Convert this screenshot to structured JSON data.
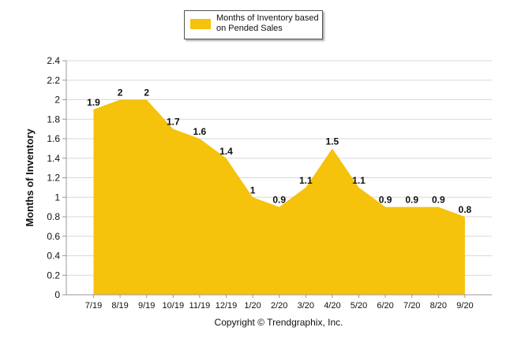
{
  "chart_data": {
    "type": "area",
    "categories": [
      "7/19",
      "8/19",
      "9/19",
      "10/19",
      "11/19",
      "12/19",
      "1/20",
      "2/20",
      "3/20",
      "4/20",
      "5/20",
      "6/20",
      "7/20",
      "8/20",
      "9/20"
    ],
    "series": [
      {
        "name": "Months of Inventory based on Pended Sales",
        "values": [
          1.9,
          2,
          2,
          1.7,
          1.6,
          1.4,
          1,
          0.9,
          1.1,
          1.5,
          1.1,
          0.9,
          0.9,
          0.9,
          0.8
        ],
        "labels": [
          "1.9",
          "2",
          "2",
          "1.7",
          "1.6",
          "1.4",
          "1",
          "0.9",
          "1.1",
          "1.5",
          "1.1",
          "0.9",
          "0.9",
          "0.9",
          "0.8"
        ],
        "color": "#f5c20c"
      }
    ],
    "ylabel": "Months of Inventory",
    "xlabel": "",
    "ylim": [
      0,
      2.4
    ],
    "yticks": [
      "0",
      "0.2",
      "0.4",
      "0.6",
      "0.8",
      "1",
      "1.2",
      "1.4",
      "1.6",
      "1.8",
      "2",
      "2.2",
      "2.4"
    ],
    "grid": true,
    "legend_position": "top-center",
    "gridline_color": "#d9d9d9",
    "axis_color": "#999999"
  },
  "footer": {
    "copyright": "Copyright © Trendgraphix, Inc."
  }
}
